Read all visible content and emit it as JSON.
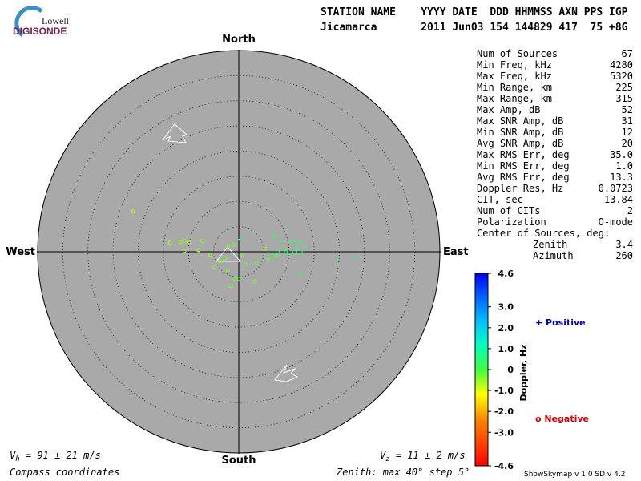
{
  "logo": {
    "top": "Lowell",
    "bottom": "DIGISONDE"
  },
  "header": {
    "line1": "STATION NAME    YYYY DATE  DDD HHMMSS AXN PPS IGP",
    "line2": "Jicamarca       2011 Jun03 154 144829 417  75 +8G"
  },
  "directions": {
    "north": "North",
    "south": "South",
    "east": "East",
    "west": "West"
  },
  "stats": [
    [
      "Num of Sources",
      "67"
    ],
    [
      "Min Freq, kHz",
      "4280"
    ],
    [
      "Max Freq, kHz",
      "5320"
    ],
    [
      "Min Range, km",
      "225"
    ],
    [
      "Max Range, km",
      "315"
    ],
    [
      "Max Amp, dB",
      "52"
    ],
    [
      "Max SNR Amp, dB",
      "31"
    ],
    [
      "Min SNR Amp, dB",
      "12"
    ],
    [
      "Avg SNR Amp, dB",
      "20"
    ],
    [
      "Max RMS Err, deg",
      "35.0"
    ],
    [
      "Min RMS Err, deg",
      "1.0"
    ],
    [
      "Avg RMS Err, deg",
      "13.3"
    ],
    [
      "Doppler Res, Hz",
      "0.0723"
    ],
    [
      "CIT, sec",
      "13.84"
    ],
    [
      "Num of CITs",
      "2"
    ],
    [
      "Polarization",
      "O-mode"
    ]
  ],
  "center": {
    "title": "Center of Sources, deg:",
    "rows": [
      [
        "Zenith",
        "3.4"
      ],
      [
        "Azimuth",
        "260"
      ]
    ]
  },
  "colorbar": {
    "title": "Doppler, Hz",
    "range": [
      -4.6,
      4.6
    ],
    "ticks": [
      4.6,
      {
        "value": 3,
        "label": "3.0"
      },
      {
        "value": 2,
        "label": "2.0"
      },
      {
        "value": 1,
        "label": "1.0"
      },
      0,
      {
        "value": -1,
        "label": "-1.0"
      },
      {
        "value": -2,
        "label": "-2.0"
      },
      {
        "value": -3,
        "label": "-3.0"
      },
      -4.6
    ]
  },
  "legend": {
    "positive": "Positive",
    "negative": "Negative"
  },
  "footer": {
    "vh_symbol": "V",
    "vh_sub": "h",
    "vh_text": " = 91 ± 21 m/s",
    "vz_symbol": "V",
    "vz_sub": "z",
    "vz_text": " = 11 ± 2 m/s",
    "coords": "Compass coordinates",
    "zenith": "Zenith: max 40°  step 5°",
    "version": "ShowSkymap v 1.0  SD v 4.2"
  },
  "sources": {
    "zenith_max": 40,
    "zenith_step": 5,
    "points": [
      {
        "x": -21.0,
        "y": 8.0,
        "doppler": -0.8
      },
      {
        "x": -13.7,
        "y": 1.8,
        "doppler": -0.6
      },
      {
        "x": -11.6,
        "y": 1.9,
        "doppler": -0.5
      },
      {
        "x": -10.7,
        "y": 2.2,
        "doppler": -0.4
      },
      {
        "x": -9.9,
        "y": 1.9,
        "doppler": -0.6
      },
      {
        "x": -8.0,
        "y": 0.3,
        "doppler": -0.7
      },
      {
        "x": -7.2,
        "y": 2.1,
        "doppler": -0.4
      },
      {
        "x": -5.7,
        "y": -0.6,
        "doppler": -0.5
      },
      {
        "x": -4.8,
        "y": -3.0,
        "doppler": -0.4
      },
      {
        "x": -3.7,
        "y": -1.8,
        "doppler": -0.3
      },
      {
        "x": -2.7,
        "y": -1.3,
        "doppler": -0.3
      },
      {
        "x": -2.2,
        "y": -3.7,
        "doppler": -0.4
      },
      {
        "x": -1.6,
        "y": -6.8,
        "doppler": -0.3
      },
      {
        "x": -0.8,
        "y": -5.4,
        "doppler": -0.2
      },
      {
        "x": 0,
        "y": -5.4,
        "doppler": -0.2
      },
      {
        "x": 0.6,
        "y": -0.6,
        "doppler": -0.3
      },
      {
        "x": 1.3,
        "y": -2.5,
        "doppler": -0.2
      },
      {
        "x": 3.2,
        "y": -5.9,
        "doppler": -0.4
      },
      {
        "x": 3.5,
        "y": -2.2,
        "doppler": -0.2
      },
      {
        "x": 5.3,
        "y": 0.6,
        "doppler": -0.3
      },
      {
        "x": 5.9,
        "y": -1.4,
        "doppler": -0.2
      },
      {
        "x": 7.5,
        "y": -0.8,
        "doppler": -0.2
      },
      {
        "x": -2.1,
        "y": 1.1,
        "doppler": -0.3
      },
      {
        "x": -1.1,
        "y": 1.4,
        "doppler": -0.2
      },
      {
        "x": -10.8,
        "y": 0.2,
        "doppler": -0.5
      },
      {
        "x": 7.0,
        "y": 3.0,
        "doppler": 0.3
      },
      {
        "x": 8.6,
        "y": 2.2,
        "doppler": 0.4
      },
      {
        "x": 9.1,
        "y": 0.3,
        "doppler": 0.3
      },
      {
        "x": 9.6,
        "y": -0.2,
        "doppler": 0.4
      },
      {
        "x": 10.2,
        "y": 1.9,
        "doppler": 0.3
      },
      {
        "x": 10.7,
        "y": 0.2,
        "doppler": 0.4
      },
      {
        "x": 11.1,
        "y": 2.2,
        "doppler": 0.5
      },
      {
        "x": 11.6,
        "y": 0.6,
        "doppler": 0.4
      },
      {
        "x": 12.1,
        "y": 1.9,
        "doppler": 0.4
      },
      {
        "x": 12.6,
        "y": -0.2,
        "doppler": 0.3
      },
      {
        "x": 13.1,
        "y": 1.0,
        "doppler": 0.3
      },
      {
        "x": 12.3,
        "y": -4.6,
        "doppler": 0.4
      },
      {
        "x": 19.6,
        "y": -1.6,
        "doppler": 0.5
      },
      {
        "x": 22.9,
        "y": -1.1,
        "doppler": 0.6
      },
      {
        "x": 6.7,
        "y": -0.5,
        "doppler": 0.3
      },
      {
        "x": 8.0,
        "y": 0.2,
        "doppler": 0.4
      },
      {
        "x": 9.9,
        "y": -0.5,
        "doppler": 0.5
      },
      {
        "x": 11.5,
        "y": -0.3,
        "doppler": 0.4
      },
      {
        "x": 0.3,
        "y": 2.5,
        "doppler": 0.3
      }
    ]
  }
}
